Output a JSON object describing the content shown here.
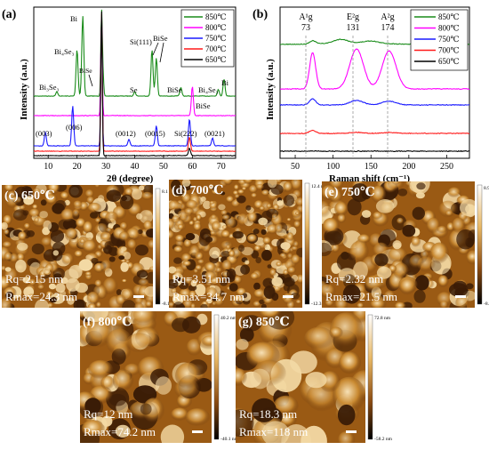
{
  "panel_a": {
    "label": "(a)",
    "xlabel": "2θ (degree)",
    "ylabel": "Intensity (a.u.)",
    "xticks": [
      "10",
      "20",
      "30",
      "40",
      "50",
      "60",
      "70"
    ],
    "legend": [
      "850℃",
      "800℃",
      "750℃",
      "700℃",
      "650℃"
    ],
    "peak_labels": {
      "bi3se3_left": "Bi₃Se₃",
      "bi4se3": "Bi₄Se₃",
      "bi": "Bi",
      "bise_mid": "BiSe",
      "si111": "Si(111)",
      "bise_top": "BiSe",
      "se": "Se",
      "bise_r1": "BiSe",
      "bi4se3_r": "Bi₄Se₃",
      "bi_r": "Bi",
      "bise_800": "BiSe",
      "p003": "(003)",
      "p006": "(006)",
      "p0012": "(0012)",
      "p0015": "(0015)",
      "si222": "Si(222)",
      "p0021": "(0021)"
    }
  },
  "panel_b": {
    "label": "(b)",
    "xlabel": "Raman shift (cm⁻¹)",
    "ylabel": "Intensity (a.u.)",
    "xticks": [
      "50",
      "100",
      "150",
      "200",
      "250"
    ],
    "legend": [
      "850℃",
      "800℃",
      "750℃",
      "700℃",
      "650℃"
    ],
    "mode_labels": [
      {
        "name": "A¹g",
        "value": "73"
      },
      {
        "name": "E²g",
        "value": "131"
      },
      {
        "name": "A²g",
        "value": "174"
      }
    ]
  },
  "afm": [
    {
      "label": "(c) 650℃",
      "rq": "Rq=2.15 nm",
      "rmax": "Rmax=24.3 nm",
      "scale_top": "8.1 nm",
      "scale_bottom": "-8.1 nm"
    },
    {
      "label": "(d) 700℃",
      "rq": "Rq=3.51 nm",
      "rmax": "Rmax=34.7 nm",
      "scale_top": "12.4 nm",
      "scale_bottom": "-12.3 nm"
    },
    {
      "label": "(e) 750℃",
      "rq": "Rq=2.32 nm",
      "rmax": "Rmax=21.5 nm",
      "scale_top": "8.9 nm",
      "scale_bottom": "-8.4 nm"
    },
    {
      "label": "(f) 800℃",
      "rq": "Rq=12 nm",
      "rmax": "Rmax=74.2 nm",
      "scale_top": "40.2 nm",
      "scale_bottom": "-40.1 nm"
    },
    {
      "label": "(g) 850℃",
      "rq": "Rq=18.3 nm",
      "rmax": "Rmax=118 nm",
      "scale_top": "72.8 nm",
      "scale_bottom": "-58.2 nm"
    }
  ],
  "colors": {
    "s850": "#1a8c1a",
    "s800": "#ff00ff",
    "s750": "#1a1aff",
    "s700": "#ff1a1a",
    "s650": "#000000",
    "afm_dark": "#3a1c06",
    "afm_mid": "#9a5a14",
    "afm_light": "#f3d9a4"
  },
  "chart_data": [
    {
      "type": "line",
      "title": "",
      "xlabel": "2θ (degree)",
      "ylabel": "Intensity (a.u.)",
      "xlim": [
        5,
        75
      ],
      "series": [
        {
          "name": "850℃",
          "peaks": [
            [
              13,
              0.05
            ],
            [
              20,
              0.55
            ],
            [
              22,
              0.95
            ],
            [
              28.5,
              1.0
            ],
            [
              29,
              0.25
            ],
            [
              40,
              0.05
            ],
            [
              46,
              0.55
            ],
            [
              47.5,
              0.45
            ],
            [
              56,
              0.1
            ],
            [
              69,
              0.08
            ],
            [
              71,
              0.2
            ]
          ]
        },
        {
          "name": "800℃",
          "peaks": [
            [
              28.5,
              1.0
            ],
            [
              60,
              0.3
            ]
          ]
        },
        {
          "name": "750℃",
          "peaks": [
            [
              9,
              0.1
            ],
            [
              18.5,
              0.3
            ],
            [
              28.5,
              1.0
            ],
            [
              38,
              0.05
            ],
            [
              47.5,
              0.15
            ],
            [
              59,
              0.2
            ],
            [
              67,
              0.06
            ]
          ]
        },
        {
          "name": "700℃",
          "peaks": [
            [
              28.5,
              1.0
            ],
            [
              59,
              0.1
            ]
          ]
        },
        {
          "name": "650℃",
          "peaks": [
            [
              28.5,
              1.0
            ],
            [
              59,
              0.05
            ]
          ]
        }
      ]
    },
    {
      "type": "line",
      "title": "",
      "xlabel": "Raman shift (cm⁻¹)",
      "ylabel": "Intensity (a.u.)",
      "xlim": [
        30,
        280
      ],
      "series": [
        {
          "name": "850℃",
          "peaks": [
            [
              73,
              0.3
            ],
            [
              110,
              0.35
            ],
            [
              150,
              0.2
            ]
          ]
        },
        {
          "name": "800℃",
          "peaks": [
            [
              73,
              0.9
            ],
            [
              131,
              1.0
            ],
            [
              174,
              0.95
            ]
          ]
        },
        {
          "name": "750℃",
          "peaks": [
            [
              73,
              0.5
            ],
            [
              131,
              0.35
            ],
            [
              174,
              0.3
            ]
          ]
        },
        {
          "name": "700℃",
          "peaks": [
            [
              73,
              0.45
            ],
            [
              131,
              0.15
            ],
            [
              174,
              0.12
            ]
          ]
        },
        {
          "name": "650℃",
          "peaks": [
            [
              73,
              0.05
            ]
          ]
        }
      ]
    }
  ]
}
